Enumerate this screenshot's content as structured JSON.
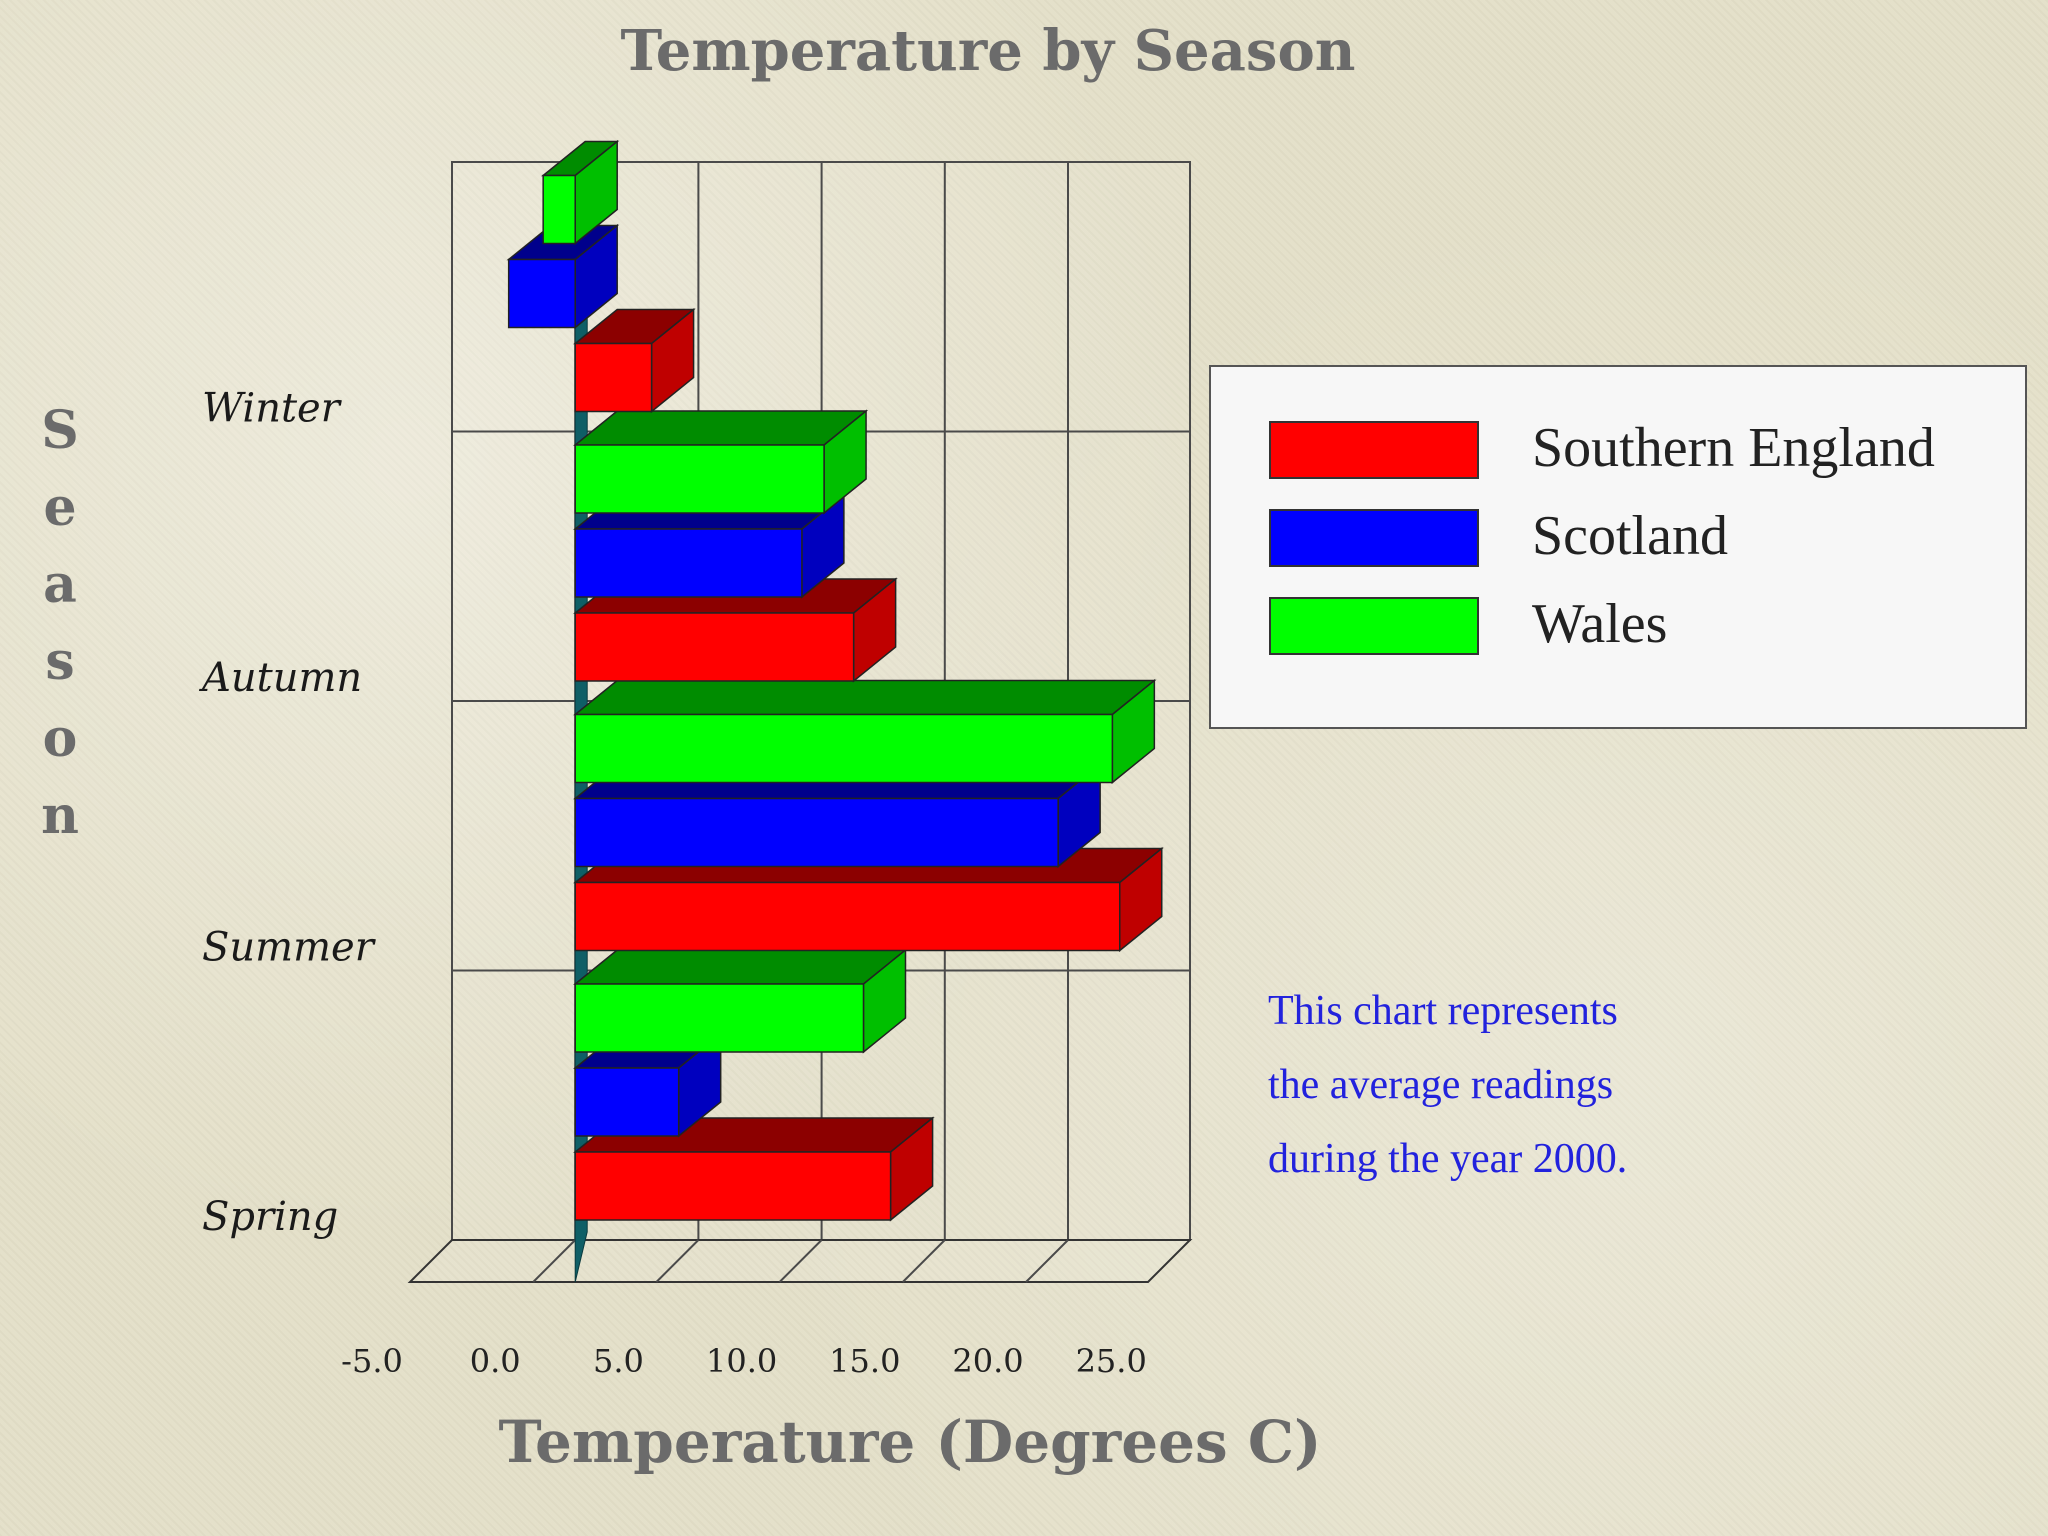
{
  "chart_data": {
    "type": "bar",
    "orientation": "horizontal",
    "title": "Temperature by Season",
    "xlabel": "Temperature (Degrees C)",
    "ylabel": "Season",
    "xlim": [
      -5,
      25
    ],
    "x_ticks": [
      "-5.0",
      "0.0",
      "5.0",
      "10.0",
      "15.0",
      "20.0",
      "25.0"
    ],
    "categories": [
      "Spring",
      "Summer",
      "Autumn",
      "Winter"
    ],
    "series": [
      {
        "name": "Southern England",
        "color": "#ff0000",
        "values": [
          12.8,
          22.1,
          11.3,
          3.1
        ]
      },
      {
        "name": "Scotland",
        "color": "#0000ff",
        "values": [
          4.2,
          19.6,
          9.2,
          -2.7
        ]
      },
      {
        "name": "Wales",
        "color": "#00ff00",
        "values": [
          11.7,
          21.8,
          10.1,
          -1.3
        ]
      }
    ],
    "legend_position": "right",
    "annotation": [
      "This chart represents",
      "the average readings",
      "during the year 2000."
    ]
  }
}
